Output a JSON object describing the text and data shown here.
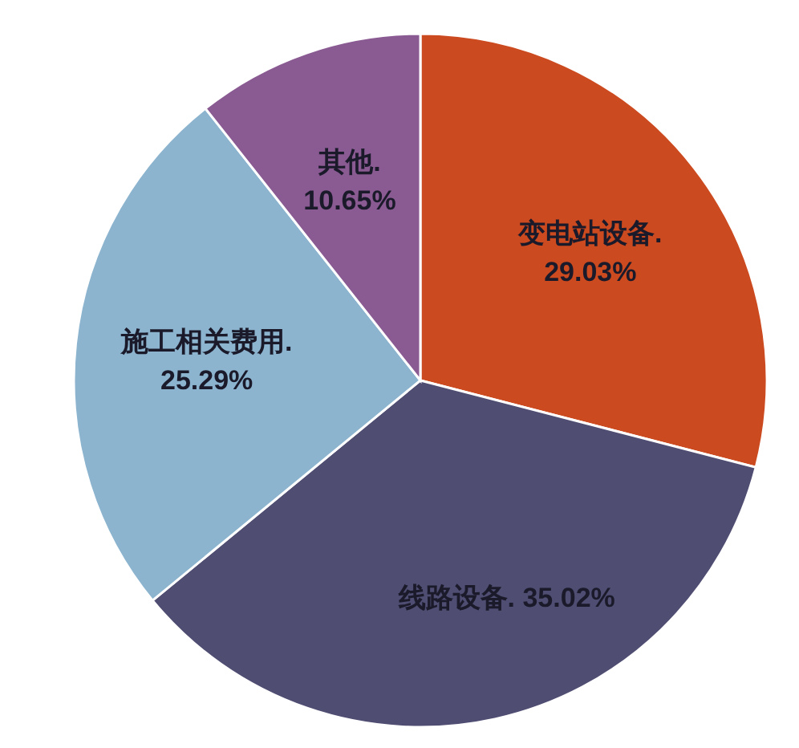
{
  "chart_data": {
    "type": "pie",
    "categories": [
      "变电站设备.",
      "线路设备.",
      "施工相关费用.",
      "其他."
    ],
    "values": [
      29.03,
      35.02,
      25.29,
      10.65
    ],
    "colors": [
      "#cc4a1f",
      "#4f4d72",
      "#8cb4cf",
      "#8a5a92"
    ],
    "value_labels": [
      "29.03%",
      "35.02%",
      "25.29%",
      "10.65%"
    ]
  }
}
